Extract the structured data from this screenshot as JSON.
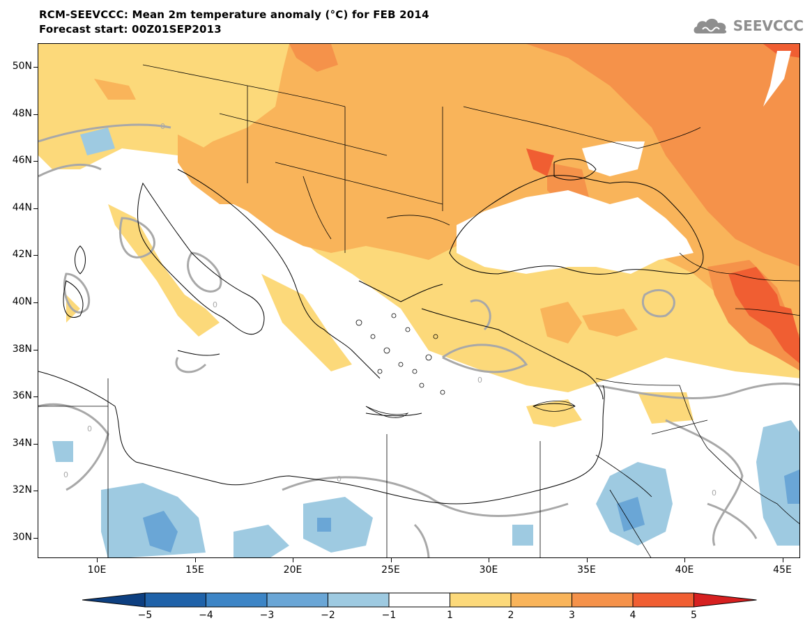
{
  "header": {
    "title": "RCM-SEEVCCC: Mean 2m temperature anomaly (°C) for FEB 2014",
    "subtitle": "Forecast start: 00Z01SEP2013"
  },
  "logo": {
    "text": "SEEVCCC",
    "icon": "cloud-logo-icon"
  },
  "map": {
    "lat_labels": [
      "50N",
      "48N",
      "46N",
      "44N",
      "42N",
      "40N",
      "38N",
      "36N",
      "34N",
      "32N",
      "30N"
    ],
    "lon_labels": [
      "10E",
      "15E",
      "20E",
      "25E",
      "30E",
      "35E",
      "40E",
      "45E"
    ],
    "contour_label": "0",
    "colors": {
      "lt_-4": "#1f62a9",
      "-4_-3": "#3d85c6",
      "-3_-2": "#6aa6d6",
      "-2_-1": "#9ecae1",
      "-1_1": "#ffffff",
      "1_2": "#fcd97a",
      "2_3": "#f9b45a",
      "3_4": "#f5924a",
      "4_5": "#f05e32",
      "gt_5": "#d62020",
      "contour": "#a8a8a8",
      "border": "#000000"
    }
  },
  "colorbar": {
    "labels": [
      "−5",
      "−4",
      "−3",
      "−2",
      "−1",
      "1",
      "2",
      "3",
      "4",
      "5"
    ],
    "segment_colors": [
      "#0d3f80",
      "#1f62a9",
      "#3d85c6",
      "#6aa6d6",
      "#9ecae1",
      "#ffffff",
      "#fcd97a",
      "#f9b45a",
      "#f5924a",
      "#f05e32",
      "#d62020"
    ]
  }
}
